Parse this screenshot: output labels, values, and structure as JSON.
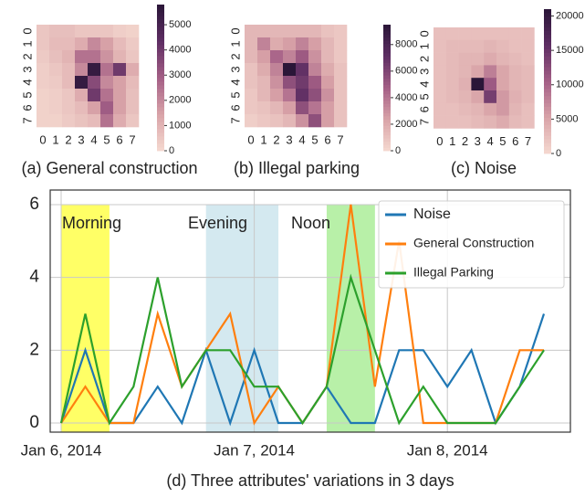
{
  "chart_data": [
    {
      "type": "heatmap",
      "title": "(a) General construction",
      "x_categories": [
        "0",
        "1",
        "2",
        "3",
        "4",
        "5",
        "6",
        "7"
      ],
      "y_categories": [
        "0",
        "1",
        "2",
        "3",
        "4",
        "5",
        "6",
        "7"
      ],
      "values": [
        [
          500,
          700,
          700,
          500,
          500,
          500,
          300,
          200
        ],
        [
          500,
          800,
          800,
          1200,
          2000,
          1500,
          800,
          400
        ],
        [
          400,
          700,
          1000,
          2500,
          2500,
          1800,
          1000,
          500
        ],
        [
          300,
          500,
          800,
          2000,
          5500,
          2500,
          4000,
          1200
        ],
        [
          300,
          400,
          800,
          5500,
          3500,
          2000,
          1500,
          800
        ],
        [
          200,
          300,
          500,
          1200,
          4000,
          2500,
          1500,
          700
        ],
        [
          200,
          300,
          500,
          800,
          1500,
          3000,
          1500,
          700
        ],
        [
          200,
          200,
          400,
          600,
          800,
          2500,
          1200,
          500
        ]
      ],
      "zlim": [
        0,
        5800
      ],
      "zticks": [
        0,
        1000,
        2000,
        3000,
        4000,
        5000
      ],
      "colors": [
        "#f5d9d0",
        "#d9a3a8",
        "#a45f86",
        "#5e2e63",
        "#2a1638"
      ]
    },
    {
      "type": "heatmap",
      "title": "(b) Illegal parking",
      "x_categories": [
        "0",
        "1",
        "2",
        "3",
        "4",
        "5",
        "6",
        "7"
      ],
      "y_categories": [
        "0",
        "1",
        "2",
        "3",
        "4",
        "5",
        "6",
        "7"
      ],
      "values": [
        [
          1500,
          1500,
          1500,
          1500,
          1500,
          1500,
          1000,
          800
        ],
        [
          1500,
          3500,
          2000,
          2500,
          3500,
          2500,
          1500,
          800
        ],
        [
          1500,
          2500,
          4500,
          3500,
          5000,
          3000,
          1500,
          800
        ],
        [
          1000,
          2000,
          3500,
          9500,
          7000,
          3500,
          2000,
          1000
        ],
        [
          1000,
          1500,
          3000,
          5500,
          6500,
          5000,
          2500,
          1000
        ],
        [
          800,
          1500,
          2500,
          4000,
          7000,
          5500,
          3000,
          1000
        ],
        [
          800,
          1000,
          1500,
          2500,
          5500,
          4000,
          2500,
          1000
        ],
        [
          500,
          800,
          1000,
          1500,
          3000,
          5500,
          2500,
          1000
        ]
      ],
      "zlim": [
        0,
        9500
      ],
      "zticks": [
        0,
        2000,
        4000,
        6000,
        8000
      ],
      "colors": [
        "#f5d9d0",
        "#d9a3a8",
        "#a45f86",
        "#5e2e63",
        "#2a1638"
      ]
    },
    {
      "type": "heatmap",
      "title": "(c) Noise",
      "x_categories": [
        "0",
        "1",
        "2",
        "3",
        "4",
        "5",
        "6",
        "7"
      ],
      "y_categories": [
        "0",
        "1",
        "2",
        "3",
        "4",
        "5",
        "6",
        "7"
      ],
      "values": [
        [
          2500,
          2500,
          2500,
          2500,
          2500,
          2500,
          2500,
          2500
        ],
        [
          2500,
          3000,
          3000,
          3000,
          3500,
          3000,
          2500,
          2500
        ],
        [
          2500,
          3000,
          3500,
          3500,
          4500,
          3500,
          3000,
          2500
        ],
        [
          2500,
          3000,
          3500,
          5000,
          8000,
          5000,
          3500,
          3000
        ],
        [
          2500,
          3000,
          4000,
          21000,
          11000,
          5000,
          3500,
          3000
        ],
        [
          2500,
          3000,
          3500,
          5000,
          14000,
          6000,
          4000,
          3000
        ],
        [
          2500,
          2500,
          3000,
          3500,
          5000,
          6000,
          3500,
          2500
        ],
        [
          2500,
          2500,
          2500,
          3000,
          3500,
          4500,
          3000,
          2500
        ]
      ],
      "zlim": [
        0,
        21000
      ],
      "zticks": [
        0,
        5000,
        10000,
        15000,
        20000
      ],
      "colors": [
        "#f5d9d0",
        "#d9a3a8",
        "#a45f86",
        "#5e2e63",
        "#2a1638"
      ]
    },
    {
      "type": "line",
      "title": "(d) Three attributes' variations in 3 days",
      "categories": [
        "Jan 6, 2014",
        null,
        null,
        null,
        null,
        null,
        null,
        null,
        "Jan 7, 2014",
        null,
        null,
        null,
        null,
        null,
        null,
        null,
        "Jan 8, 2014",
        null,
        null,
        null,
        null
      ],
      "series": [
        {
          "name": "Noise",
          "color": "#1f77b4",
          "values": [
            0,
            2,
            0,
            0,
            1,
            0,
            2,
            0,
            2,
            0,
            0,
            1,
            0,
            0,
            2,
            2,
            1,
            2,
            0,
            1,
            3
          ]
        },
        {
          "name": "General Construction",
          "color": "#ff7f0e",
          "values": [
            0,
            1,
            0,
            0,
            3,
            1,
            2,
            3,
            0,
            1,
            0,
            1,
            6,
            1,
            5,
            0,
            0,
            0,
            0,
            2,
            2
          ]
        },
        {
          "name": "Illegal Parking",
          "color": "#2ca02c",
          "values": [
            0,
            3,
            0,
            1,
            4,
            1,
            2,
            2,
            1,
            1,
            0,
            1,
            4,
            2,
            0,
            1,
            0,
            0,
            0,
            1,
            2
          ]
        }
      ],
      "bands": [
        {
          "label": "Morning",
          "start": 0,
          "end": 2,
          "color": "#ffff66"
        },
        {
          "label": "Evening",
          "start": 6,
          "end": 9,
          "color": "#d4e9f0"
        },
        {
          "label": "Noon",
          "start": 11,
          "end": 13,
          "color": "#b8f0a8"
        }
      ],
      "ylim": [
        -0.25,
        6.4
      ],
      "yticks": [
        0,
        2,
        4,
        6
      ],
      "grid": true,
      "legend": "upper right"
    }
  ]
}
